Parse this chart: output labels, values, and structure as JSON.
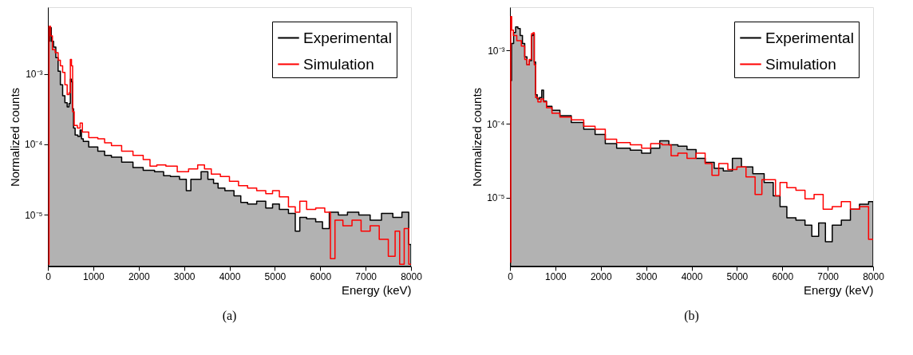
{
  "chart_data": [
    {
      "type": "step",
      "xlabel": "Energy (keV)",
      "ylabel": "Normalized counts",
      "annotations": [
        "(a)"
      ],
      "log": "y",
      "legend": "top right",
      "grid": false,
      "xlim": [
        0,
        8000
      ],
      "xticks": [
        0,
        1000,
        2000,
        3000,
        4000,
        5000,
        6000,
        7000,
        8000
      ],
      "ylim": [
        1.86e-06,
        0.0088
      ],
      "yticks": [
        {
          "value": 1e-05,
          "label": "10⁻⁵"
        },
        {
          "value": 0.0001,
          "label": "10⁻⁴"
        },
        {
          "value": 0.001,
          "label": "10⁻³"
        }
      ],
      "series": [
        {
          "name": "Experimental",
          "type": "area",
          "color": "#000000",
          "x": [
            10,
            25,
            50,
            100,
            150,
            200,
            250,
            300,
            350,
            400,
            450,
            480,
            510,
            530,
            550,
            580,
            620,
            700,
            720,
            760,
            800,
            1000,
            1200,
            1300,
            1500,
            1750,
            2000,
            2200,
            2500,
            2600,
            2800,
            3000,
            3100,
            3200,
            3300,
            3450,
            3600,
            3700,
            3800,
            4000,
            4200,
            4300,
            4500,
            4700,
            4900,
            5000,
            5200,
            5400,
            5500,
            5600,
            5800,
            6000,
            6100,
            6300,
            6500,
            6700,
            7000,
            7200,
            7500,
            7700,
            7900,
            8000
          ],
          "values": [
            0.00017,
            0.0029,
            0.0045,
            0.0029,
            0.0024,
            0.0017,
            0.00109,
            0.0007,
            0.00049,
            0.00039,
            0.00034,
            0.00038,
            0.00084,
            0.00077,
            0.00032,
            0.00017,
            0.000136,
            0.00013,
            0.00016,
            0.00012,
            0.00011,
            9.2e-05,
            8e-05,
            7e-05,
            6.6e-05,
            5.6e-05,
            4.7e-05,
            4.3e-05,
            4.1e-05,
            3.6e-05,
            3.5e-05,
            3.2e-05,
            2.2e-05,
            3.2e-05,
            3.2e-05,
            4.1e-05,
            3.2e-05,
            2.8e-05,
            2.4e-05,
            2.2e-05,
            1.86e-05,
            1.5e-05,
            1.43e-05,
            1.56e-05,
            1.25e-05,
            1.43e-05,
            1.2e-05,
            1.05e-05,
            5.9e-06,
            9.2e-06,
            8.8e-06,
            8e-06,
            6.4e-06,
            1.09e-05,
            1e-05,
            1.09e-05,
            1e-05,
            8.4e-06,
            1.05e-05,
            9.2e-06,
            1.09e-05,
            3.8e-06
          ]
        },
        {
          "name": "Simulation",
          "type": "step",
          "color": "#ff0000",
          "x": [
            10,
            40,
            80,
            120,
            200,
            250,
            300,
            350,
            400,
            450,
            480,
            510,
            530,
            560,
            600,
            700,
            720,
            800,
            1000,
            1200,
            1300,
            1500,
            1750,
            2000,
            2200,
            2300,
            2500,
            2700,
            3000,
            3200,
            3400,
            3500,
            3700,
            3900,
            4100,
            4300,
            4500,
            4700,
            4900,
            5000,
            5200,
            5400,
            5500,
            5600,
            5800,
            6000,
            6200,
            6250,
            6400,
            6600,
            6800,
            7000,
            7200,
            7400,
            7600,
            7700,
            7800,
            7900,
            8000
          ],
          "values": [
            2e-06,
            0.0047,
            0.00345,
            0.0022,
            0.002,
            0.00156,
            0.0013,
            0.00105,
            0.0007,
            0.00051,
            0.00054,
            0.0016,
            0.0013,
            0.00029,
            0.000186,
            0.00017,
            0.0002,
            0.00015,
            0.000125,
            0.00012,
            0.000105,
            9.6e-05,
            8e-05,
            7e-05,
            6.1e-05,
            4.9e-05,
            5.1e-05,
            4.9e-05,
            4.1e-05,
            4.5e-05,
            5.1e-05,
            4.5e-05,
            3.8e-05,
            3.5e-05,
            3e-05,
            2.6e-05,
            2.4e-05,
            2.2e-05,
            2e-05,
            2.2e-05,
            1.8e-05,
            1.3e-05,
            1.09e-05,
            1.56e-05,
            1.2e-05,
            1.25e-05,
            1.09e-05,
            2.4e-06,
            8.4e-06,
            7e-06,
            8.4e-06,
            5.9e-06,
            7e-06,
            4.5e-06,
            2.6e-06,
            5.9e-06,
            2e-06,
            6.4e-06,
            2e-06
          ]
        }
      ]
    },
    {
      "type": "step",
      "xlabel": "Energy (keV)",
      "ylabel": "Normalized counts",
      "annotations": [
        "(b)"
      ],
      "log": "y",
      "legend": "top right",
      "grid": false,
      "xlim": [
        0,
        8000
      ],
      "xticks": [
        0,
        1000,
        2000,
        3000,
        4000,
        5000,
        6000,
        7000,
        8000
      ],
      "ylim": [
        1.15e-06,
        0.0039
      ],
      "yticks": [
        {
          "value": 1e-05,
          "label": "10⁻⁵"
        },
        {
          "value": 0.0001,
          "label": "10⁻⁴"
        },
        {
          "value": 0.001,
          "label": "10⁻³"
        }
      ],
      "series": [
        {
          "name": "Experimental",
          "type": "area",
          "color": "#000000",
          "x": [
            10,
            60,
            100,
            150,
            200,
            250,
            300,
            350,
            400,
            450,
            500,
            520,
            550,
            580,
            620,
            680,
            720,
            760,
            850,
            1000,
            1200,
            1500,
            1750,
            2000,
            2200,
            2500,
            2800,
            3000,
            3200,
            3400,
            3600,
            3800,
            4000,
            4200,
            4400,
            4600,
            4800,
            5000,
            5200,
            5500,
            5700,
            5900,
            6000,
            6200,
            6400,
            6600,
            6700,
            6900,
            7000,
            7200,
            7400,
            7600,
            7800,
            8000
          ],
          "values": [
            0.00039,
            0.00125,
            0.00176,
            0.0021,
            0.002,
            0.0016,
            0.00125,
            0.00082,
            0.00064,
            0.00073,
            0.0016,
            0.0017,
            0.0007,
            0.00025,
            0.00022,
            0.00023,
            0.00029,
            0.000205,
            0.000174,
            0.000154,
            0.00013,
            0.000105,
            8.5e-05,
            7.2e-05,
            5.4e-05,
            4.7e-05,
            4.4e-05,
            4e-05,
            4.7e-05,
            5.9e-05,
            5.2e-05,
            5e-05,
            4.5e-05,
            3.4e-05,
            3e-05,
            2.5e-05,
            2.3e-05,
            3.4e-05,
            2.6e-05,
            2.1e-05,
            1.6e-05,
            1.05e-05,
            7.5e-06,
            5.3e-06,
            4.9e-06,
            4.2e-06,
            2.95e-06,
            4.5e-06,
            2.5e-06,
            4.2e-06,
            4.9e-06,
            6.9e-06,
            8.1e-06,
            8.8e-06
          ]
        },
        {
          "name": "Simulation",
          "type": "step",
          "color": "#ff0000",
          "x": [
            10,
            25,
            50,
            100,
            200,
            300,
            350,
            400,
            450,
            500,
            520,
            550,
            580,
            650,
            720,
            760,
            850,
            1000,
            1200,
            1500,
            1750,
            2000,
            2200,
            2500,
            2800,
            3000,
            3200,
            3500,
            3600,
            3800,
            4000,
            4200,
            4400,
            4500,
            4700,
            4900,
            5100,
            5300,
            5500,
            5600,
            5800,
            5900,
            6000,
            6200,
            6400,
            6600,
            6800,
            7000,
            7200,
            7400,
            7600,
            7800,
            8000
          ],
          "values": [
            1.3e-06,
            0.0029,
            0.0019,
            0.0016,
            0.00136,
            0.00115,
            0.00076,
            0.00064,
            0.00076,
            0.0017,
            0.00175,
            0.00064,
            0.00023,
            0.0002,
            0.00022,
            0.0002,
            0.000167,
            0.00014,
            0.000124,
            0.000114,
            9.3e-05,
            8.5e-05,
            6.2e-05,
            5.6e-05,
            5.2e-05,
            4.7e-05,
            5.4e-05,
            5.2e-05,
            3.7e-05,
            4e-05,
            3.4e-05,
            4e-05,
            2.9e-05,
            2e-05,
            2.9e-05,
            2.4e-05,
            2.6e-05,
            1.9e-05,
            1.1e-05,
            1.75e-05,
            1.75e-05,
            1.05e-05,
            1.6e-05,
            1.36e-05,
            1.25e-05,
            9.6e-06,
            1.1e-05,
            6.9e-06,
            7.5e-06,
            8.8e-06,
            6.9e-06,
            7.5e-06,
            2.7e-06
          ]
        }
      ]
    }
  ]
}
